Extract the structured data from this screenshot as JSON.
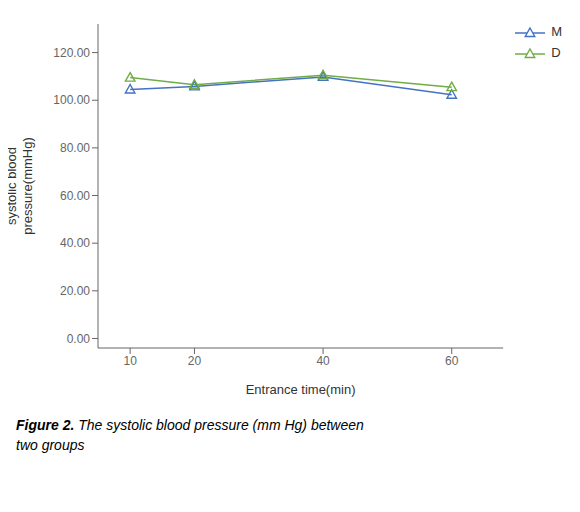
{
  "chart_data": {
    "type": "line",
    "title": "Figure 2.",
    "subtitle": "The systolic blood pressure (mm Hg) between\ntwo groups",
    "xlabel": "Entrance time(min)",
    "ylabel": "systolic blood\npressure(mmHg)",
    "x": [
      10,
      20,
      40,
      60
    ],
    "series": [
      {
        "name": "M",
        "color": "#4472C4",
        "values": [
          104.5,
          105.8,
          109.8,
          102.3
        ],
        "marker": "triangle"
      },
      {
        "name": "D",
        "color": "#70AD47",
        "values": [
          109.5,
          106.5,
          110.5,
          105.5
        ],
        "marker": "triangle"
      }
    ],
    "xlim": [
      5,
      68
    ],
    "ylim": [
      -4,
      132
    ],
    "xticks": [
      10,
      20,
      40,
      60
    ],
    "yticks": [
      {
        "value": 0,
        "label": "0.00"
      },
      {
        "value": 20,
        "label": "20.00"
      },
      {
        "value": 40,
        "label": "40.00"
      },
      {
        "value": 60,
        "label": "60.00"
      },
      {
        "value": 80,
        "label": "80.00"
      },
      {
        "value": 100,
        "label": "100.00"
      },
      {
        "value": 120,
        "label": "120.00"
      }
    ],
    "grid": false,
    "legend": "right"
  }
}
